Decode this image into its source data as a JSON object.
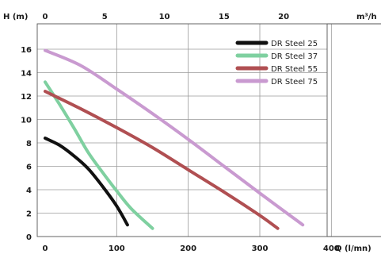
{
  "chart_data": {
    "type": "line",
    "title": "",
    "ylabel": "H (m)",
    "xlabel": "Q (l/mn)",
    "x2label": "m³/h",
    "x_ticks": [
      0,
      100,
      200,
      300,
      400
    ],
    "x2_ticks": [
      0,
      5,
      10,
      15,
      20
    ],
    "y_ticks": [
      0,
      2,
      4,
      6,
      8,
      10,
      12,
      14,
      16
    ],
    "xlim": [
      0,
      400
    ],
    "ylim": [
      0,
      17.5
    ],
    "x_ratio_m3h_per_lmn": 0.06,
    "grid": true,
    "legend_position": "top-right",
    "series": [
      {
        "name": "DR Steel 25",
        "color": "#111111",
        "points": [
          [
            0,
            8.4
          ],
          [
            20,
            7.8
          ],
          [
            40,
            6.9
          ],
          [
            60,
            5.8
          ],
          [
            80,
            4.3
          ],
          [
            100,
            2.6
          ],
          [
            115,
            1.0
          ]
        ]
      },
      {
        "name": "DR Steel 37",
        "color": "#7fd0a0",
        "points": [
          [
            0,
            13.2
          ],
          [
            20,
            11.3
          ],
          [
            40,
            9.3
          ],
          [
            60,
            7.2
          ],
          [
            80,
            5.5
          ],
          [
            100,
            3.9
          ],
          [
            120,
            2.4
          ],
          [
            150,
            0.7
          ]
        ]
      },
      {
        "name": "DR Steel 55",
        "color": "#b04f52",
        "points": [
          [
            0,
            12.4
          ],
          [
            50,
            10.9
          ],
          [
            100,
            9.3
          ],
          [
            150,
            7.6
          ],
          [
            200,
            5.7
          ],
          [
            250,
            3.8
          ],
          [
            300,
            1.8
          ],
          [
            325,
            0.7
          ]
        ]
      },
      {
        "name": "DR Steel 75",
        "color": "#c99ad0",
        "points": [
          [
            0,
            15.9
          ],
          [
            50,
            14.6
          ],
          [
            100,
            12.6
          ],
          [
            150,
            10.5
          ],
          [
            200,
            8.3
          ],
          [
            250,
            6.0
          ],
          [
            300,
            3.7
          ],
          [
            340,
            1.9
          ],
          [
            360,
            1.0
          ]
        ]
      }
    ]
  }
}
